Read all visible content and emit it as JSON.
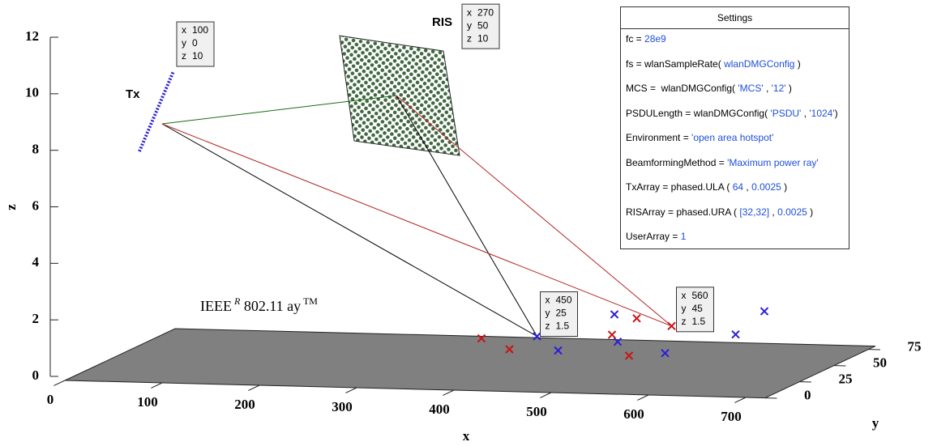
{
  "chart_data": {
    "type": "scatter3",
    "xlabel": "x",
    "ylabel": "y",
    "zlabel": "z",
    "xlim": [
      0,
      720
    ],
    "ylim": [
      0,
      80
    ],
    "zlim": [
      0,
      12
    ],
    "xticks": [
      0,
      100,
      200,
      300,
      400,
      500,
      600,
      700
    ],
    "yticks": [
      0,
      25,
      50,
      75
    ],
    "zticks": [
      0,
      2,
      4,
      6,
      8,
      10,
      12
    ],
    "plane_label": [
      "IEEE",
      "R",
      "802.11 ay",
      "TM"
    ],
    "tip_labels": [
      "x",
      "y",
      "z"
    ],
    "tx": {
      "label": "Tx",
      "x": 100,
      "y": 0,
      "z": 10,
      "color": "#2b1fd8"
    },
    "ris": {
      "label": "RIS",
      "x": 270,
      "y": 50,
      "z": 10,
      "color": "#1f4d1f"
    },
    "series": [
      {
        "color": "#2b1fd8",
        "x": [
          450,
          500,
          480,
          540,
          610,
          640,
          620
        ],
        "y": [
          25,
          5,
          60,
          20,
          5,
          35,
          70
        ],
        "z": [
          1.5,
          1.5,
          1.5,
          1.5,
          1.5,
          1.5,
          1.5
        ]
      },
      {
        "color": "#c81414",
        "x": [
          400,
          450,
          520,
          510,
          580,
          560
        ],
        "y": [
          20,
          5,
          30,
          55,
          0,
          45
        ],
        "z": [
          1.5,
          1.5,
          1.5,
          1.5,
          1.5,
          1.5
        ]
      }
    ]
  },
  "settings": {
    "title": "Settings",
    "rows": [
      [
        "fc = ",
        "28e9"
      ],
      [
        "fs = wlanSampleRate( ",
        "wlanDMGConfig",
        " )"
      ],
      [
        "MCS =  wlanDMGConfig( ",
        "'MCS'",
        " , ",
        "'12'",
        " )"
      ],
      [
        "PSDULength = wlanDMGConfig( ",
        "'PSDU'",
        " , ",
        "'1024'",
        ")"
      ],
      [
        "Environment = ",
        "'open area hotspot'"
      ],
      [
        "BeamformingMethod = ",
        "'Maximum power ray'"
      ],
      [
        "TxArray = phased.ULA ( ",
        "64",
        " , ",
        "0.0025",
        " )"
      ],
      [
        "RISArray = phased.URA ( ",
        "[32,32]",
        " , ",
        "0.0025",
        " )"
      ],
      [
        "UserArray = ",
        "1"
      ]
    ]
  }
}
